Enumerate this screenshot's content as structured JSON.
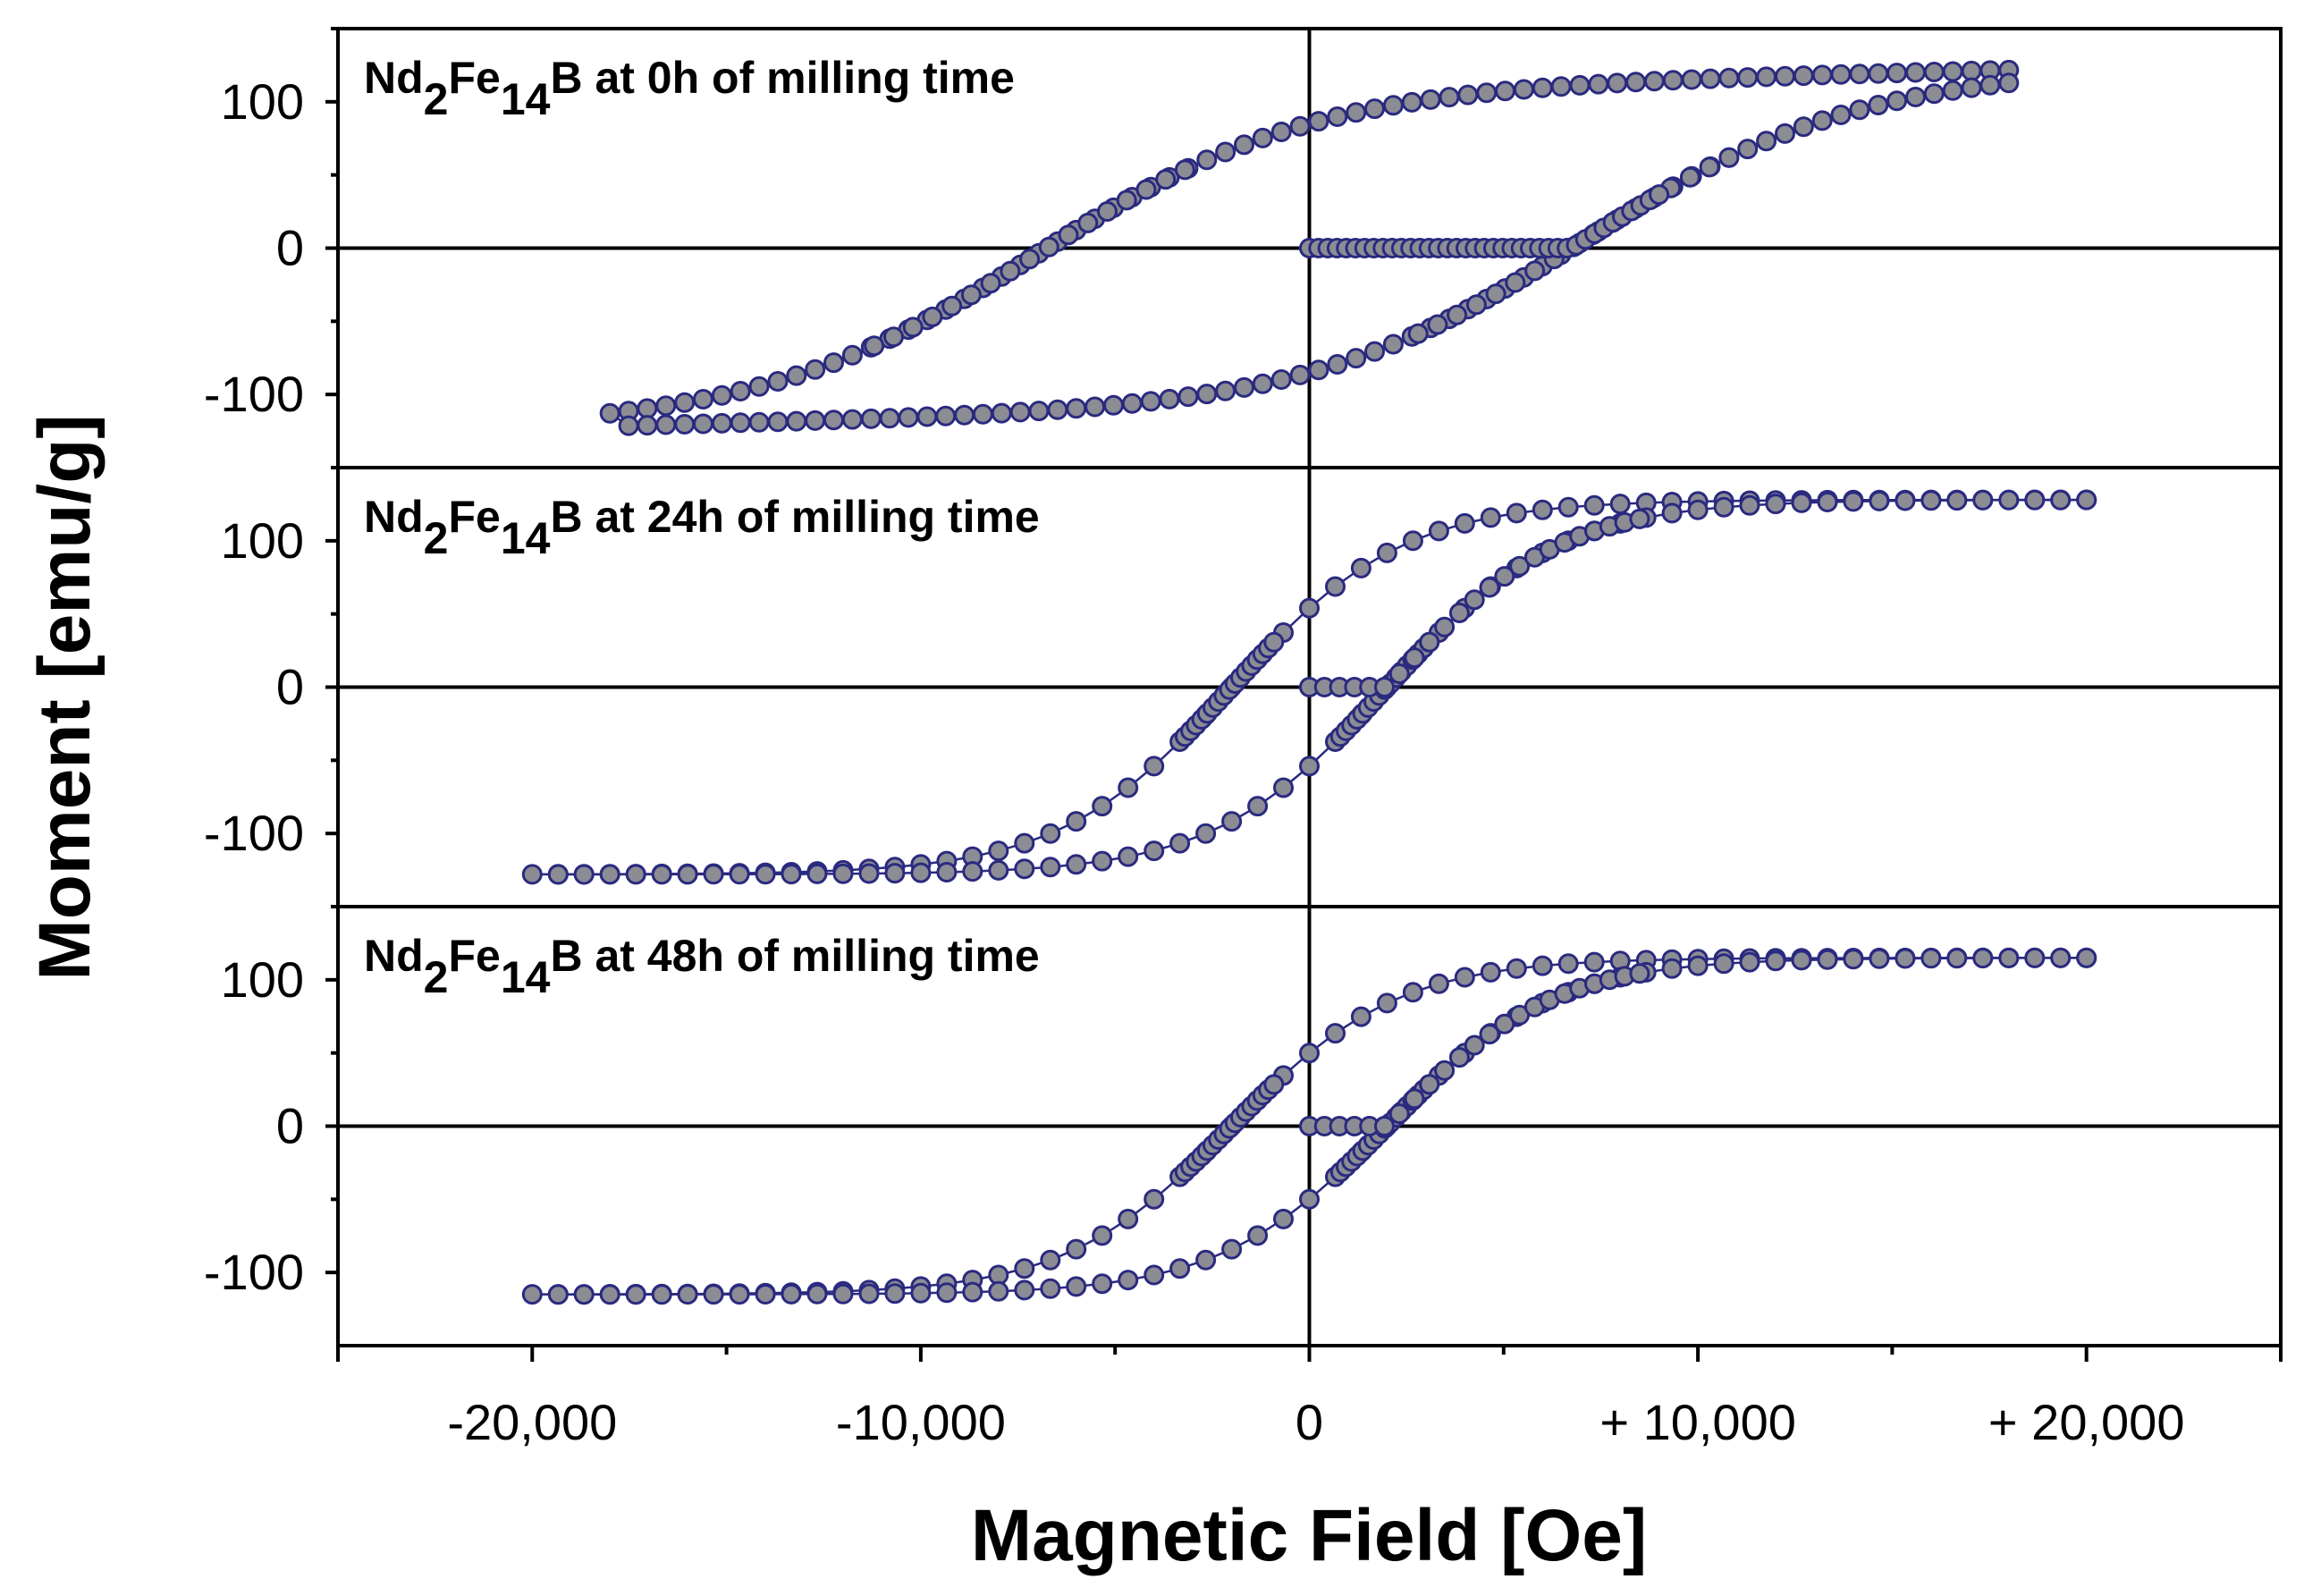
{
  "chart_data": {
    "type": "scatter",
    "xlabel": "Magnetic Field [Oe]",
    "ylabel": "Moment [emu/g]",
    "xlim": [
      -25000,
      25000
    ],
    "x_ticks": [
      {
        "value": -20000,
        "label": "-20,000"
      },
      {
        "value": -10000,
        "label": "-10,000"
      },
      {
        "value": 0,
        "label": "0"
      },
      {
        "value": 10000,
        "label": "+ 10,000"
      },
      {
        "value": 20000,
        "label": "+ 20,000"
      }
    ],
    "marker_fill": "#8c8c94",
    "marker_stroke": "#2a2a80",
    "line_color": "#2a2a80",
    "panels": [
      {
        "title": {
          "base": "Nd",
          "sub1": "2",
          "mid": "Fe",
          "sub2": "14",
          "end": "B",
          "suffix": " at 0h of milling time"
        },
        "ylim": [
          -150,
          150
        ],
        "y_ticks": [
          {
            "value": 100,
            "label": "100"
          },
          {
            "value": 0,
            "label": "0"
          },
          {
            "value": -100,
            "label": "-100"
          }
        ],
        "hc": 7000,
        "ms": 111,
        "mr": 85,
        "k": 0.68,
        "aslope": 0.0006,
        "hmax": 18000,
        "virgin_end": 9000,
        "virgin_hc": 6500,
        "n_branch": 75,
        "n_virgin": 38
      },
      {
        "title": {
          "base": "Nd",
          "sub1": "2",
          "mid": "Fe",
          "sub2": "14",
          "end": "B",
          "suffix": " at 24h of milling time"
        },
        "ylim": [
          -150,
          150
        ],
        "y_ticks": [
          {
            "value": 100,
            "label": "100"
          },
          {
            "value": 0,
            "label": "0"
          },
          {
            "value": -100,
            "label": "-100"
          }
        ],
        "hc": 2000,
        "ms": 128,
        "mr": 54,
        "k": 0.3,
        "aslope": 0,
        "hmax": 20000,
        "virgin_end": 8500,
        "virgin_hc": 1000,
        "n_branch": 60,
        "n_virgin": 22
      },
      {
        "title": {
          "base": "Nd",
          "sub1": "2",
          "mid": "Fe",
          "sub2": "14",
          "end": "B",
          "suffix": "  at 48h of milling time"
        },
        "ylim": [
          -150,
          150
        ],
        "y_ticks": [
          {
            "value": 100,
            "label": "100"
          },
          {
            "value": 0,
            "label": "0"
          },
          {
            "value": -100,
            "label": "-100"
          }
        ],
        "hc": 2000,
        "ms": 115,
        "mr": 50,
        "k": 0.28,
        "aslope": 0,
        "hmax": 20000,
        "virgin_end": 8500,
        "virgin_hc": 1000,
        "n_branch": 60,
        "n_virgin": 22
      }
    ]
  }
}
